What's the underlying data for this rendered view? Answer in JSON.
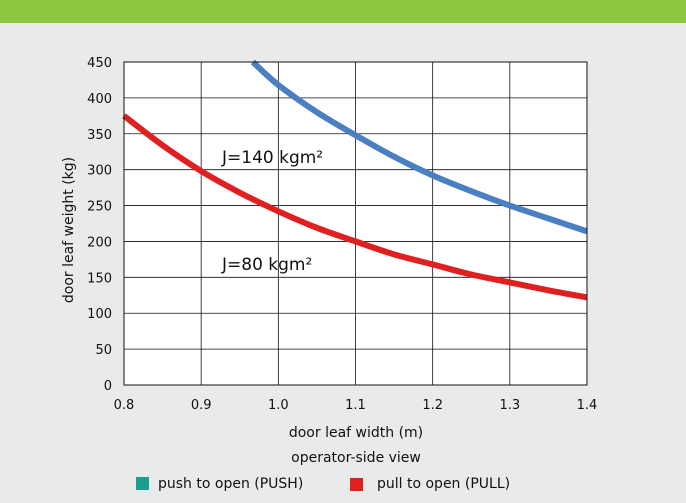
{
  "chart_data": {
    "type": "line",
    "xlabel": "door leaf width (m)",
    "ylabel": "door leaf weight (kg)",
    "xlim": [
      0.8,
      1.4
    ],
    "ylim": [
      0,
      450
    ],
    "x_ticks": [
      "0.8",
      "0.9",
      "1.0",
      "1.1",
      "1.2",
      "1.3",
      "1.4"
    ],
    "y_ticks": [
      "0",
      "50",
      "100",
      "150",
      "200",
      "250",
      "300",
      "350",
      "400",
      "450"
    ],
    "grid": true,
    "caption": "operator-side view",
    "series": [
      {
        "name": "push to open (PUSH)",
        "annotation": "J=140 kgm²",
        "color": "#4a7fc1",
        "legend_color": "#1a9e8f",
        "x": [
          0.967,
          1.0,
          1.05,
          1.1,
          1.15,
          1.2,
          1.25,
          1.3,
          1.35,
          1.4
        ],
        "y": [
          450,
          418,
          380,
          348,
          318,
          292,
          270,
          250,
          232,
          214
        ]
      },
      {
        "name": "pull to open (PULL)",
        "annotation": "J=80 kgm²",
        "color": "#e02020",
        "legend_color": "#e02020",
        "x": [
          0.8,
          0.85,
          0.9,
          0.95,
          1.0,
          1.05,
          1.1,
          1.15,
          1.2,
          1.25,
          1.3,
          1.35,
          1.4
        ],
        "y": [
          375,
          334,
          298,
          268,
          242,
          219,
          200,
          182,
          168,
          154,
          143,
          132,
          122
        ]
      }
    ]
  }
}
